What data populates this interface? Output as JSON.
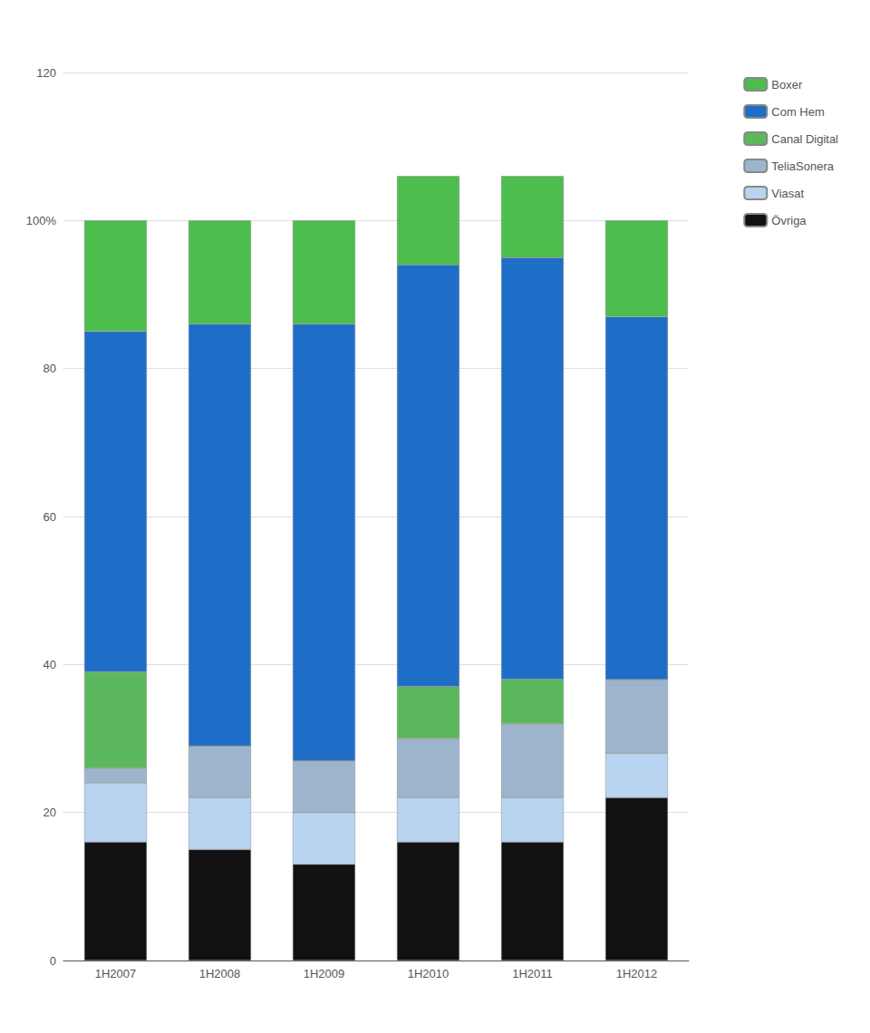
{
  "chart_data": {
    "type": "bar",
    "stacked": true,
    "categories": [
      "1H2007",
      "1H2008",
      "1H2009",
      "1H2010",
      "1H2011",
      "1H2012"
    ],
    "series": [
      {
        "name": "Övriga",
        "color": "#111111",
        "values": [
          16,
          15,
          13,
          16,
          16,
          22
        ]
      },
      {
        "name": "Viasat",
        "color": "#b8d4f0",
        "values": [
          8,
          7,
          7,
          6,
          6,
          6
        ]
      },
      {
        "name": "TeliaSonera",
        "color": "#9db5cc",
        "values": [
          2,
          7,
          7,
          8,
          10,
          10
        ]
      },
      {
        "name": "Canal Digital",
        "color": "#5cb85c",
        "values": [
          13,
          0,
          0,
          7,
          6,
          0
        ]
      },
      {
        "name": "Com Hem",
        "color": "#1e6ec8",
        "values": [
          46,
          57,
          59,
          57,
          57,
          49
        ]
      },
      {
        "name": "Boxer",
        "color": "#4dbd4d",
        "values": [
          15,
          14,
          14,
          12,
          11,
          13
        ]
      }
    ],
    "ylim": [
      0,
      120
    ],
    "yticks": [
      0,
      20,
      40,
      60,
      80,
      {
        "value": 100,
        "label": "100%"
      },
      120
    ],
    "grid": true,
    "legend": "right"
  }
}
